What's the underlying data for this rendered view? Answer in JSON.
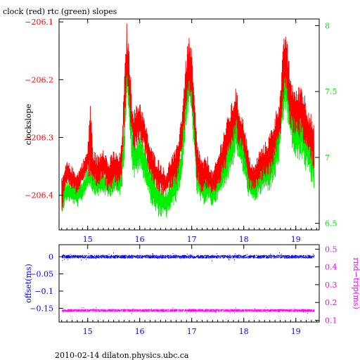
{
  "title": "clock (red) rtc (green) slopes",
  "footer": "2010-02-14 dilaton.physics.ubc.ca",
  "colors": {
    "clock": "#ff0000",
    "rtc": "#00ee00",
    "offset": "#0000ff",
    "roundtrip": "#ff00ff",
    "axis": "#000000"
  },
  "chart_data": [
    {
      "type": "line",
      "title": "clock (red) rtc (green) slopes",
      "ylabel": "clockslope",
      "xlim": [
        14.45,
        19.45
      ],
      "ylim": [
        -206.46,
        -206.095
      ],
      "y2lim": [
        6.45,
        8.05
      ],
      "xticks": [
        15,
        16,
        17,
        18,
        19
      ],
      "yticks": [
        -206.1,
        -206.2,
        -206.3,
        -206.4
      ],
      "ytick_labels": [
        "−206.1",
        "−206.2",
        "−206.3",
        "−206.4"
      ],
      "y2ticks": [
        6.5,
        7,
        7.5,
        8
      ],
      "y2tick_labels": [
        "6.5",
        "7",
        "7.5",
        "8"
      ],
      "series": [
        {
          "axis": "left",
          "x": [
            14.5,
            14.6,
            14.7,
            14.8,
            14.9,
            15.0,
            15.05,
            15.1,
            15.2,
            15.3,
            15.4,
            15.5,
            15.6,
            15.65,
            15.7,
            15.75,
            15.8,
            15.85,
            15.9,
            16.0,
            16.1,
            16.2,
            16.3,
            16.4,
            16.5,
            16.6,
            16.7,
            16.8,
            16.9,
            16.95,
            17.0,
            17.1,
            17.2,
            17.3,
            17.4,
            17.5,
            17.6,
            17.7,
            17.8,
            17.85,
            17.9,
            18.0,
            18.1,
            18.2,
            18.3,
            18.4,
            18.5,
            18.6,
            18.7,
            18.75,
            18.8,
            18.85,
            18.9,
            19.0,
            19.1,
            19.2,
            19.3,
            19.35
          ],
          "values": [
            -206.4,
            -206.36,
            -206.37,
            -206.38,
            -206.36,
            -206.34,
            -206.3,
            -206.35,
            -206.36,
            -206.34,
            -206.37,
            -206.35,
            -206.36,
            -206.34,
            -206.25,
            -206.16,
            -206.2,
            -206.27,
            -206.29,
            -206.27,
            -206.3,
            -206.34,
            -206.36,
            -206.37,
            -206.38,
            -206.36,
            -206.35,
            -206.3,
            -206.2,
            -206.18,
            -206.2,
            -206.34,
            -206.37,
            -206.36,
            -206.38,
            -206.36,
            -206.33,
            -206.3,
            -206.27,
            -206.25,
            -206.28,
            -206.3,
            -206.36,
            -206.37,
            -206.35,
            -206.34,
            -206.33,
            -206.3,
            -206.26,
            -206.2,
            -206.16,
            -206.2,
            -206.24,
            -206.26,
            -206.25,
            -206.28,
            -206.3,
            -206.32
          ],
          "amplitude": [
            0.03,
            0.02,
            0.02,
            0.02,
            0.02,
            0.02,
            0.08,
            0.03,
            0.03,
            0.03,
            0.03,
            0.03,
            0.03,
            0.03,
            0.04,
            0.06,
            0.05,
            0.04,
            0.04,
            0.04,
            0.03,
            0.03,
            0.03,
            0.03,
            0.02,
            0.03,
            0.03,
            0.04,
            0.05,
            0.06,
            0.05,
            0.04,
            0.03,
            0.03,
            0.02,
            0.03,
            0.04,
            0.04,
            0.04,
            0.04,
            0.04,
            0.03,
            0.03,
            0.02,
            0.03,
            0.03,
            0.04,
            0.04,
            0.04,
            0.05,
            0.06,
            0.05,
            0.05,
            0.04,
            0.05,
            0.05,
            0.04,
            0.04
          ]
        },
        {
          "axis": "right",
          "x": [
            14.5,
            14.6,
            14.7,
            14.8,
            14.9,
            15.0,
            15.05,
            15.1,
            15.2,
            15.3,
            15.4,
            15.5,
            15.6,
            15.65,
            15.7,
            15.75,
            15.8,
            15.85,
            15.9,
            16.0,
            16.1,
            16.2,
            16.3,
            16.4,
            16.5,
            16.6,
            16.7,
            16.8,
            16.9,
            16.95,
            17.0,
            17.1,
            17.2,
            17.3,
            17.4,
            17.5,
            17.6,
            17.7,
            17.8,
            17.85,
            17.9,
            18.0,
            18.1,
            18.2,
            18.3,
            18.4,
            18.5,
            18.6,
            18.7,
            18.75,
            18.8,
            18.85,
            18.9,
            19.0,
            19.1,
            19.2,
            19.3,
            19.35
          ],
          "values": [
            6.67,
            6.75,
            6.73,
            6.7,
            6.75,
            6.85,
            6.9,
            6.82,
            6.8,
            6.82,
            6.78,
            6.83,
            6.8,
            6.85,
            7.1,
            7.7,
            7.5,
            7.1,
            6.98,
            7.05,
            6.95,
            6.8,
            6.72,
            6.68,
            6.65,
            6.72,
            6.78,
            6.95,
            7.45,
            7.6,
            7.5,
            6.85,
            6.75,
            6.78,
            6.72,
            6.78,
            6.88,
            7.0,
            7.12,
            7.25,
            7.15,
            7.0,
            6.8,
            6.75,
            6.82,
            6.88,
            6.9,
            7.0,
            7.2,
            7.45,
            7.6,
            7.45,
            7.3,
            7.15,
            7.2,
            7.1,
            7.0,
            6.92
          ],
          "amplitude": [
            0.1,
            0.08,
            0.08,
            0.08,
            0.08,
            0.08,
            0.12,
            0.1,
            0.1,
            0.1,
            0.1,
            0.1,
            0.1,
            0.12,
            0.15,
            0.25,
            0.22,
            0.18,
            0.16,
            0.15,
            0.14,
            0.14,
            0.16,
            0.14,
            0.12,
            0.12,
            0.12,
            0.15,
            0.2,
            0.25,
            0.22,
            0.15,
            0.12,
            0.12,
            0.1,
            0.1,
            0.14,
            0.16,
            0.18,
            0.2,
            0.18,
            0.15,
            0.12,
            0.1,
            0.12,
            0.14,
            0.16,
            0.18,
            0.2,
            0.22,
            0.25,
            0.22,
            0.2,
            0.2,
            0.22,
            0.22,
            0.2,
            0.18
          ]
        }
      ]
    },
    {
      "type": "scatter",
      "ylabel": "offset(ms)",
      "y2label": "rnd−trip(ms)",
      "xlim": [
        14.45,
        19.45
      ],
      "ylim": [
        -0.19,
        0.035
      ],
      "y2lim": [
        0.09,
        0.525
      ],
      "xticks": [
        15,
        16,
        17,
        18,
        19
      ],
      "yticks": [
        0,
        -0.05,
        -0.1,
        -0.15
      ],
      "ytick_labels": [
        "0",
        "−0.05",
        "−0.1",
        "−0.15"
      ],
      "y2ticks": [
        0.1,
        0.2,
        0.3,
        0.4,
        0.5
      ],
      "y2tick_labels": [
        "0.1",
        "0.2",
        "0.3",
        "0.4",
        "0.5"
      ],
      "series": [
        {
          "axis": "left",
          "x_range": [
            14.5,
            19.35
          ],
          "center": 0.0,
          "spread": 0.004
        },
        {
          "axis": "right",
          "x_range": [
            14.5,
            19.35
          ],
          "center": 0.155,
          "spread": 0.006
        }
      ]
    }
  ]
}
